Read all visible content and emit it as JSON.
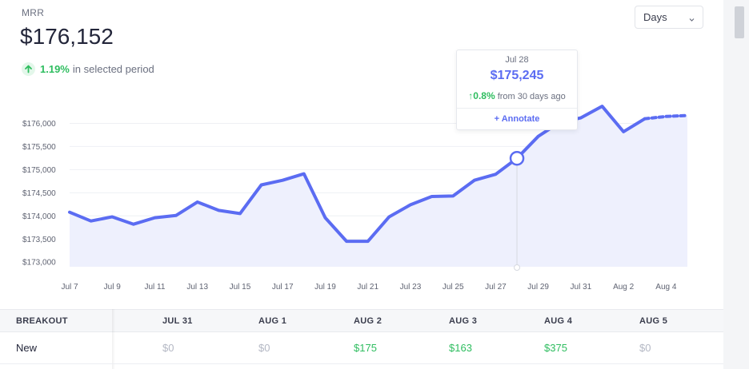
{
  "header": {
    "metric_label": "MRR",
    "metric_value": "$176,152",
    "change_pct": "1.19%",
    "change_text": "in selected period"
  },
  "period_select": {
    "value": "Days"
  },
  "tooltip": {
    "date": "Jul 28",
    "value": "$175,245",
    "change_pct": "0.8%",
    "change_text": "from 30 days ago",
    "annotate_label": "+ Annotate"
  },
  "colors": {
    "line": "#5b6cf2",
    "area": "#eef0fd",
    "positive": "#2ebd5f",
    "muted": "#b4b8c4"
  },
  "icons": {
    "change_arrow": "arrow-up-icon",
    "select_chevron": "chevron-down-icon"
  },
  "chart_data": {
    "type": "line",
    "x": [
      "Jul 7",
      "Jul 8",
      "Jul 9",
      "Jul 10",
      "Jul 11",
      "Jul 12",
      "Jul 13",
      "Jul 14",
      "Jul 15",
      "Jul 16",
      "Jul 17",
      "Jul 18",
      "Jul 19",
      "Jul 20",
      "Jul 21",
      "Jul 22",
      "Jul 23",
      "Jul 24",
      "Jul 25",
      "Jul 26",
      "Jul 27",
      "Jul 28",
      "Jul 29",
      "Jul 30",
      "Jul 31",
      "Aug 1",
      "Aug 2",
      "Aug 3",
      "Aug 4",
      "Aug 5"
    ],
    "series": [
      {
        "values": [
          174080,
          173890,
          173980,
          173820,
          173960,
          174010,
          174300,
          174120,
          174050,
          174670,
          174770,
          174910,
          173960,
          173450,
          173450,
          173980,
          174240,
          174420,
          174430,
          174770,
          174900,
          175245,
          175720,
          176020,
          176120,
          176370,
          175820,
          176100,
          176150,
          176170
        ],
        "projected_from_index": 27
      }
    ],
    "xticks": [
      "Jul 7",
      "Jul 9",
      "Jul 11",
      "Jul 13",
      "Jul 15",
      "Jul 17",
      "Jul 19",
      "Jul 21",
      "Jul 23",
      "Jul 25",
      "Jul 27",
      "Jul 29",
      "Jul 31",
      "Aug 2",
      "Aug 4"
    ],
    "yticks": [
      "$173,000",
      "$173,500",
      "$174,000",
      "$174,500",
      "$175,000",
      "$175,500",
      "$176,000"
    ],
    "ylim": [
      172900,
      176250
    ],
    "highlight": {
      "x": "Jul 28",
      "value": 175245
    },
    "grid": true,
    "title": "",
    "xlabel": "",
    "ylabel": ""
  },
  "table": {
    "header_label": "BREAKOUT",
    "columns": [
      "JUL 31",
      "AUG 1",
      "AUG 2",
      "AUG 3",
      "AUG 4",
      "AUG 5"
    ],
    "rows": [
      {
        "label": "New",
        "cells": [
          "$0",
          "$0",
          "$175",
          "$163",
          "$375",
          "$0"
        ],
        "cell_status": [
          "muted",
          "muted",
          "pos",
          "pos",
          "pos",
          "muted"
        ]
      }
    ]
  }
}
